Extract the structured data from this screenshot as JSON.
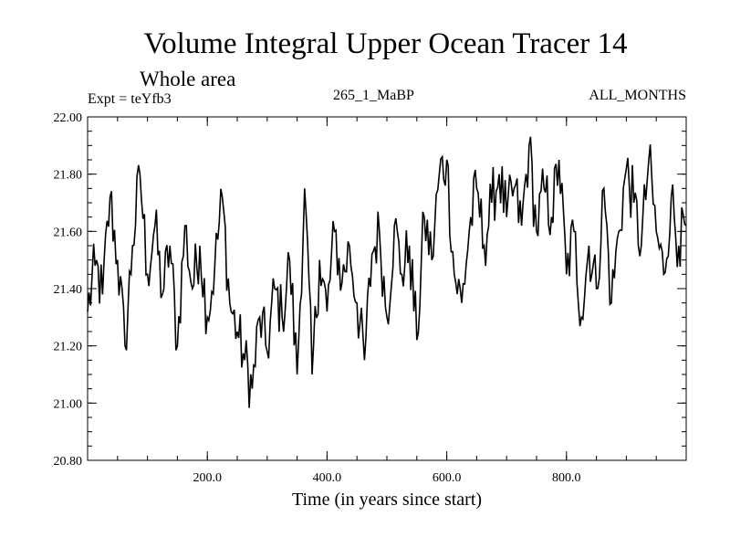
{
  "chart_data": {
    "type": "line",
    "title": "Volume Integral Upper Ocean Tracer 14",
    "subtitle": "Whole area",
    "expt_label": "Expt = teYfb3",
    "run_label": "265_1_MaBP",
    "months_label": "ALL_MONTHS",
    "xlabel": "Time (in years since start)",
    "ylabel": "",
    "xlim": [
      0,
      1000
    ],
    "ylim": [
      20.8,
      22.0
    ],
    "xticks": [
      200,
      400,
      600,
      800
    ],
    "xtick_labels": [
      "200.0",
      "400.0",
      "600.0",
      "800.0"
    ],
    "yticks": [
      20.8,
      21.0,
      21.2,
      21.4,
      21.6,
      21.8,
      22.0
    ],
    "ytick_labels": [
      "20.80",
      "21.00",
      "21.20",
      "21.40",
      "21.60",
      "21.80",
      "22.00"
    ],
    "series": [
      {
        "name": "tracer14",
        "x": [
          0,
          12.5,
          25,
          37.5,
          50,
          62.5,
          75,
          87.5,
          100,
          112.5,
          125,
          137.5,
          150,
          162.5,
          175,
          187.5,
          200,
          212.5,
          225,
          237.5,
          250,
          262.5,
          275,
          287.5,
          300,
          312.5,
          325,
          337.5,
          350,
          362.5,
          375,
          387.5,
          400,
          412.5,
          425,
          437.5,
          450,
          462.5,
          475,
          487.5,
          500,
          512.5,
          525,
          537.5,
          550,
          562.5,
          575,
          587.5,
          600,
          612.5,
          625,
          637.5,
          650,
          662.5,
          675,
          687.5,
          700,
          712.5,
          725,
          737.5,
          750,
          762.5,
          775,
          787.5,
          800,
          812.5,
          825,
          837.5,
          850,
          862.5,
          875,
          887.5,
          900,
          912.5,
          925,
          937.5,
          950,
          962.5,
          975,
          987.5,
          1000
        ],
        "values": [
          21.32,
          21.48,
          21.38,
          21.72,
          21.5,
          21.2,
          21.55,
          21.8,
          21.45,
          21.62,
          21.38,
          21.55,
          21.2,
          21.62,
          21.4,
          21.55,
          21.3,
          21.48,
          21.72,
          21.35,
          21.25,
          21.15,
          21.05,
          21.3,
          21.18,
          21.4,
          21.3,
          21.5,
          21.1,
          21.75,
          21.1,
          21.5,
          21.32,
          21.6,
          21.42,
          21.55,
          21.35,
          21.15,
          21.52,
          21.6,
          21.3,
          21.62,
          21.45,
          21.55,
          21.22,
          21.65,
          21.5,
          21.8,
          21.85,
          21.45,
          21.35,
          21.6,
          21.75,
          21.55,
          21.7,
          21.8,
          21.65,
          21.75,
          21.62,
          21.9,
          21.6,
          21.75,
          21.65,
          21.85,
          21.45,
          21.6,
          21.3,
          21.55,
          21.4,
          21.75,
          21.35,
          21.6,
          21.82,
          21.7,
          21.55,
          21.85,
          21.6,
          21.45,
          21.72,
          21.55,
          21.62
        ]
      }
    ],
    "line_color": "#000000"
  }
}
